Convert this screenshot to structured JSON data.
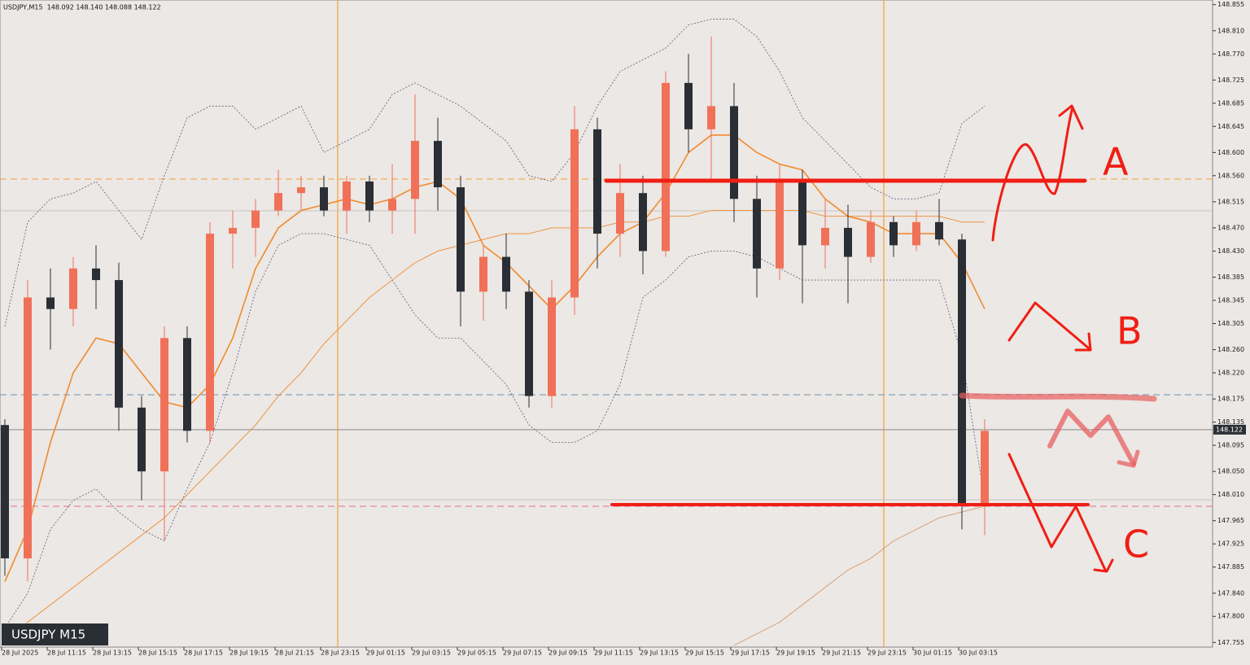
{
  "chart_data": {
    "type": "candlestick",
    "header": "USDJPY,M15  148.092 148.140 148.088 148.122",
    "symbol_label": "USDJPY M15",
    "ylim": [
      147.747,
      148.863
    ],
    "yticks": [
      {
        "value": 148.855,
        "label": "148.855"
      },
      {
        "value": 148.81,
        "label": "148.810"
      },
      {
        "value": 148.77,
        "label": "148.770"
      },
      {
        "value": 148.725,
        "label": "148.725"
      },
      {
        "value": 148.685,
        "label": "148.685"
      },
      {
        "value": 148.645,
        "label": "148.645"
      },
      {
        "value": 148.6,
        "label": "148.600"
      },
      {
        "value": 148.56,
        "label": "148.560"
      },
      {
        "value": 148.515,
        "label": "148.515"
      },
      {
        "value": 148.47,
        "label": "148.470"
      },
      {
        "value": 148.43,
        "label": "148.430"
      },
      {
        "value": 148.385,
        "label": "148.385"
      },
      {
        "value": 148.345,
        "label": "148.345"
      },
      {
        "value": 148.305,
        "label": "148.305"
      },
      {
        "value": 148.26,
        "label": "148.260"
      },
      {
        "value": 148.22,
        "label": "148.220"
      },
      {
        "value": 148.175,
        "label": "148.175"
      },
      {
        "value": 148.135,
        "label": "148.135"
      },
      {
        "value": 148.095,
        "label": "148.095"
      },
      {
        "value": 148.05,
        "label": "148.050"
      },
      {
        "value": 148.01,
        "label": "148.010"
      },
      {
        "value": 147.965,
        "label": "147.965"
      },
      {
        "value": 147.925,
        "label": "147.925"
      },
      {
        "value": 147.885,
        "label": "147.885"
      },
      {
        "value": 147.84,
        "label": "147.840"
      },
      {
        "value": 147.8,
        "label": "147.800"
      },
      {
        "value": 147.755,
        "label": "147.755"
      }
    ],
    "last_price": {
      "value": 148.122,
      "label": "148.122"
    },
    "time_labels": [
      "28 Jul 2025",
      "28 Jul 11:15",
      "28 Jul 13:15",
      "28 Jul 15:15",
      "28 Jul 17:15",
      "28 Jul 19:15",
      "28 Jul 21:15",
      "28 Jul 23:15",
      "29 Jul 01:15",
      "29 Jul 03:15",
      "29 Jul 05:15",
      "29 Jul 07:15",
      "29 Jul 09:15",
      "29 Jul 11:15",
      "29 Jul 13:15",
      "29 Jul 15:15",
      "29 Jul 17:15",
      "29 Jul 19:15",
      "29 Jul 21:15",
      "29 Jul 23:15",
      "30 Jul 01:15",
      "30 Jul 03:15"
    ],
    "candles": {
      "open": [
        148.13,
        147.9,
        148.35,
        148.33,
        148.4,
        148.38,
        148.16,
        148.05,
        148.28,
        148.12,
        148.46,
        148.47,
        148.5,
        148.53,
        148.54,
        148.5,
        148.55,
        148.5,
        148.52,
        148.62,
        148.54,
        148.36,
        148.42,
        148.36,
        148.18,
        148.35,
        148.64,
        148.46,
        148.53,
        148.43,
        148.72,
        148.64,
        148.68,
        148.52,
        148.4,
        148.55,
        148.44,
        148.47,
        148.42,
        148.48,
        148.44,
        148.48,
        148.45,
        147.99
      ],
      "high": [
        148.14,
        148.38,
        148.4,
        148.42,
        148.44,
        148.41,
        148.18,
        148.3,
        148.3,
        148.48,
        148.5,
        148.52,
        148.57,
        148.56,
        148.56,
        148.56,
        148.56,
        148.58,
        148.7,
        148.66,
        148.56,
        148.44,
        148.46,
        148.38,
        148.38,
        148.68,
        148.66,
        148.58,
        148.56,
        148.74,
        148.77,
        148.8,
        148.72,
        148.56,
        148.58,
        148.57,
        148.52,
        148.51,
        148.5,
        148.49,
        148.5,
        148.52,
        148.46,
        148.14
      ],
      "low": [
        147.87,
        147.86,
        148.26,
        148.3,
        148.33,
        148.12,
        148.0,
        147.93,
        148.1,
        148.1,
        148.4,
        148.42,
        148.49,
        148.5,
        148.49,
        148.46,
        148.48,
        148.46,
        148.46,
        148.5,
        148.3,
        148.31,
        148.33,
        148.16,
        148.16,
        148.32,
        148.4,
        148.42,
        148.39,
        148.42,
        148.6,
        148.55,
        148.48,
        148.35,
        148.38,
        148.34,
        148.4,
        148.34,
        148.41,
        148.42,
        148.43,
        148.44,
        147.95,
        147.94
      ],
      "close": [
        147.9,
        148.35,
        148.33,
        148.4,
        148.38,
        148.16,
        148.05,
        148.28,
        148.12,
        148.46,
        148.47,
        148.5,
        148.53,
        148.54,
        148.5,
        148.55,
        148.5,
        148.52,
        148.62,
        148.54,
        148.36,
        148.42,
        148.36,
        148.18,
        148.35,
        148.64,
        148.46,
        148.53,
        148.43,
        148.72,
        148.64,
        148.68,
        148.52,
        148.4,
        148.55,
        148.44,
        148.47,
        148.42,
        148.48,
        148.44,
        148.48,
        148.45,
        147.99,
        148.12
      ]
    },
    "up_color": "#f07158",
    "down_color": "#2a2e35",
    "indicators": [
      {
        "color": "#f28a2e",
        "width": 1.6,
        "dash": "",
        "values": [
          147.86,
          147.95,
          148.1,
          148.22,
          148.28,
          148.27,
          148.22,
          148.17,
          148.16,
          148.2,
          148.28,
          148.4,
          148.47,
          148.5,
          148.51,
          148.52,
          148.51,
          148.52,
          148.54,
          148.55,
          148.52,
          148.44,
          148.41,
          148.37,
          148.33,
          148.37,
          148.42,
          148.46,
          148.48,
          148.53,
          148.6,
          148.63,
          148.63,
          148.6,
          148.58,
          148.57,
          148.52,
          148.49,
          148.48,
          148.46,
          148.46,
          148.46,
          148.41,
          148.33
        ]
      },
      {
        "color": "#f28a2e",
        "width": 0.9,
        "dash": "",
        "values": [
          147.75,
          147.79,
          147.82,
          147.85,
          147.88,
          147.91,
          147.94,
          147.97,
          148.01,
          148.05,
          148.09,
          148.13,
          148.18,
          148.22,
          148.27,
          148.31,
          148.35,
          148.38,
          148.41,
          148.43,
          148.44,
          148.45,
          148.46,
          148.46,
          148.47,
          148.47,
          148.47,
          148.48,
          148.48,
          148.49,
          148.49,
          148.5,
          148.5,
          148.5,
          148.5,
          148.5,
          148.49,
          148.49,
          148.49,
          148.49,
          148.49,
          148.49,
          148.48,
          148.48
        ]
      },
      {
        "color": "#d9986a",
        "width": 0.9,
        "dash": "",
        "values": [
          null,
          null,
          null,
          null,
          null,
          null,
          null,
          null,
          null,
          null,
          null,
          null,
          null,
          null,
          null,
          null,
          null,
          null,
          null,
          null,
          null,
          null,
          null,
          null,
          null,
          null,
          null,
          null,
          null,
          null,
          null,
          null,
          147.75,
          147.77,
          147.79,
          147.82,
          147.85,
          147.88,
          147.9,
          147.93,
          147.95,
          147.97,
          147.98,
          147.99
        ]
      },
      {
        "color": "#6a6a86",
        "width": 0.9,
        "dash": "2,2",
        "values": [
          148.3,
          148.48,
          148.52,
          148.53,
          148.55,
          148.5,
          148.45,
          148.56,
          148.66,
          148.68,
          148.68,
          148.64,
          148.66,
          148.68,
          148.6,
          148.62,
          148.64,
          148.7,
          148.72,
          148.7,
          148.68,
          148.65,
          148.62,
          148.56,
          148.55,
          148.6,
          148.68,
          148.74,
          148.76,
          148.78,
          148.82,
          148.83,
          148.83,
          148.8,
          148.74,
          148.66,
          148.62,
          148.58,
          148.54,
          148.52,
          148.52,
          148.53,
          148.65,
          148.68
        ]
      },
      {
        "color": "#6a6a86",
        "width": 0.9,
        "dash": "2,2",
        "values": [
          147.78,
          147.84,
          147.95,
          148.0,
          148.02,
          147.98,
          147.95,
          147.93,
          148.02,
          148.1,
          148.22,
          148.36,
          148.44,
          148.46,
          148.46,
          148.45,
          148.44,
          148.38,
          148.32,
          148.28,
          148.28,
          148.24,
          148.2,
          148.13,
          148.1,
          148.1,
          148.12,
          148.2,
          148.35,
          148.38,
          148.42,
          148.43,
          148.43,
          148.42,
          148.4,
          148.38,
          148.38,
          148.38,
          148.38,
          148.38,
          148.38,
          148.38,
          148.25,
          148.0
        ]
      }
    ],
    "annotations": [
      "A",
      "B",
      "C"
    ]
  }
}
